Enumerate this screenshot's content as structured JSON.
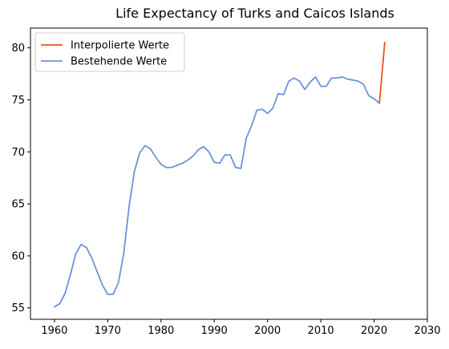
{
  "chart_data": {
    "type": "line",
    "title": "Life Expectancy of Turks and Caicos Islands",
    "xlabel": "",
    "ylabel": "",
    "xlim": [
      1955.5,
      2030
    ],
    "ylim": [
      53.9,
      81.9
    ],
    "xticks": [
      1960,
      1970,
      1980,
      1990,
      2000,
      2010,
      2020,
      2030
    ],
    "yticks": [
      55,
      60,
      65,
      70,
      75,
      80
    ],
    "grid": false,
    "legend_position": "top-left",
    "series": [
      {
        "name": "Interpolierte Werte",
        "color": "#e8531f",
        "x": [
          2021,
          2022
        ],
        "y": [
          74.7,
          80.5
        ]
      },
      {
        "name": "Bestehende Werte",
        "color": "#6c93db",
        "x": [
          1960,
          1961,
          1962,
          1963,
          1964,
          1965,
          1966,
          1967,
          1968,
          1969,
          1970,
          1971,
          1972,
          1973,
          1974,
          1975,
          1976,
          1977,
          1978,
          1979,
          1980,
          1981,
          1982,
          1983,
          1984,
          1985,
          1986,
          1987,
          1988,
          1989,
          1990,
          1991,
          1992,
          1993,
          1994,
          1995,
          1996,
          1997,
          1998,
          1999,
          2000,
          2001,
          2002,
          2003,
          2004,
          2005,
          2006,
          2007,
          2008,
          2009,
          2010,
          2011,
          2012,
          2013,
          2014,
          2015,
          2016,
          2017,
          2018,
          2019,
          2020,
          2021
        ],
        "y": [
          55.1,
          55.4,
          56.4,
          58.2,
          60.2,
          61.1,
          60.8,
          59.8,
          58.5,
          57.2,
          56.3,
          56.3,
          57.4,
          60.2,
          64.7,
          68.1,
          69.9,
          70.6,
          70.3,
          69.5,
          68.8,
          68.5,
          68.5,
          68.7,
          68.9,
          69.2,
          69.6,
          70.2,
          70.5,
          70.0,
          69.0,
          68.9,
          69.7,
          69.7,
          68.5,
          68.4,
          71.3,
          72.5,
          74.0,
          74.1,
          73.7,
          74.2,
          75.6,
          75.5,
          76.8,
          77.1,
          76.8,
          76.0,
          76.7,
          77.2,
          76.3,
          76.3,
          77.1,
          77.1,
          77.2,
          77.0,
          76.9,
          76.8,
          76.5,
          75.4,
          75.1,
          74.7
        ]
      }
    ]
  }
}
